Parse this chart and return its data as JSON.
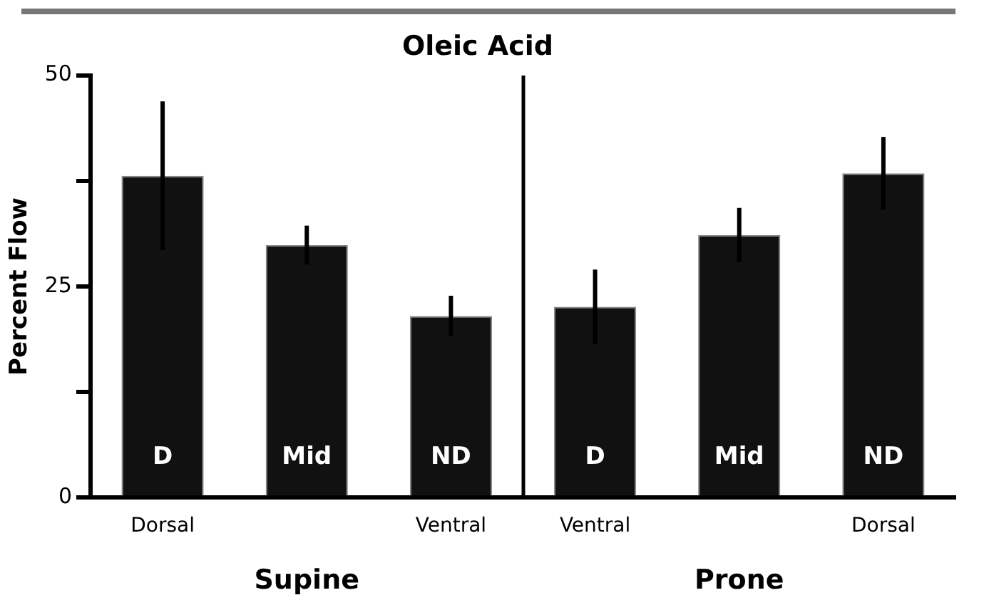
{
  "chart_data": {
    "type": "bar",
    "title": "Oleic Acid",
    "ylabel": "Percent Flow",
    "categories": [
      "Dorsal",
      null,
      "Ventral",
      "Ventral",
      null,
      "Dorsal"
    ],
    "values": [
      38.1,
      29.9,
      21.5,
      22.6,
      31.1,
      38.4
    ],
    "errors": [
      8.8,
      2.3,
      2.4,
      4.4,
      3.2,
      4.3
    ],
    "value_labels": [
      "D",
      "Mid",
      "ND",
      "D",
      "Mid",
      "ND"
    ],
    "color": "#111111",
    "ylim": [
      0,
      50
    ],
    "yticks": [
      0,
      {
        "value": 12.5,
        "label": null
      },
      25,
      {
        "value": 37.5,
        "label": null
      },
      50
    ],
    "annotations": [
      "Supine",
      "Prone"
    ],
    "grid": false,
    "legend": false
  }
}
